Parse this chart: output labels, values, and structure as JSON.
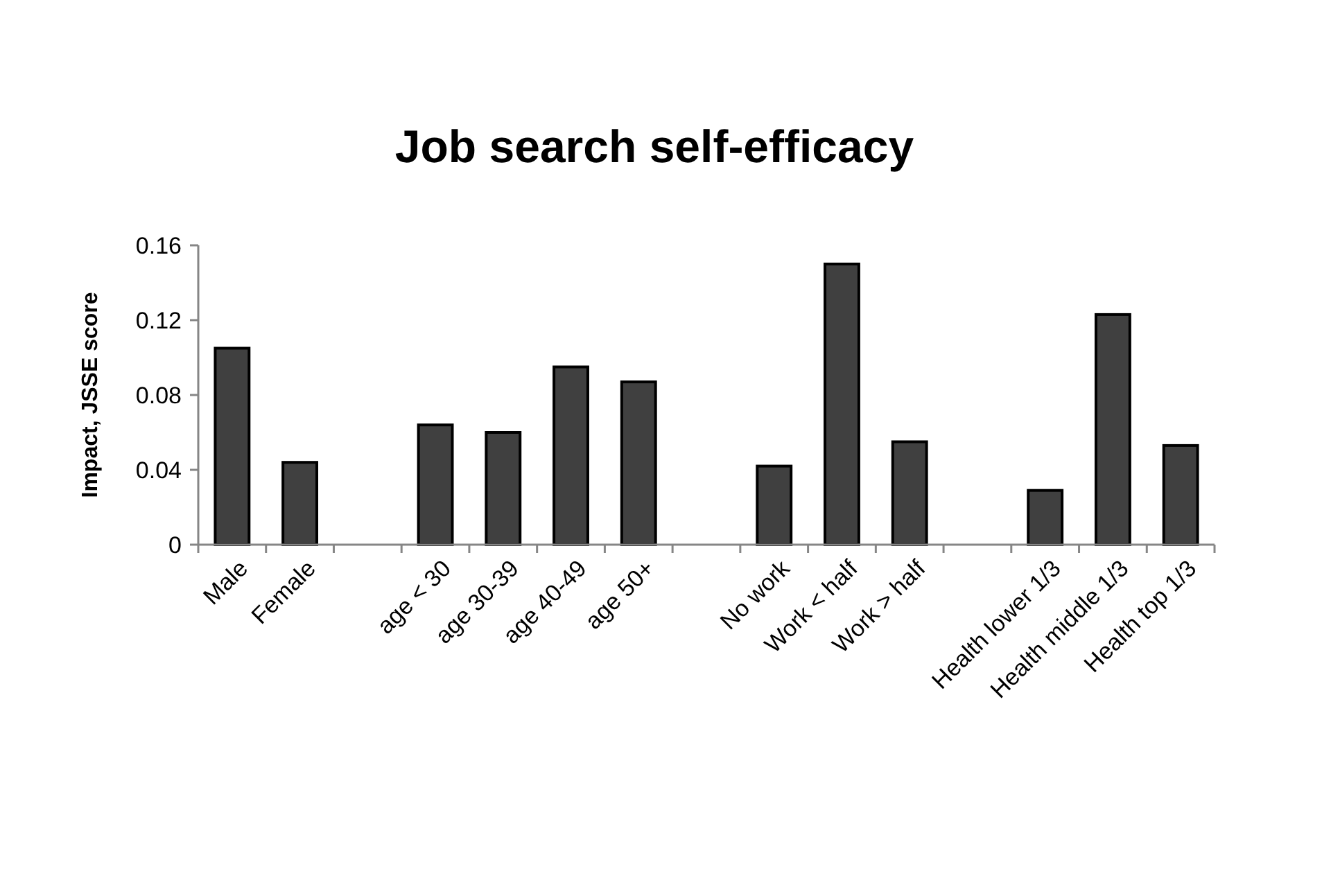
{
  "chart_data": {
    "type": "bar",
    "title": "Job search self-efficacy",
    "ylabel": "Impact, JSSE score",
    "categories": [
      "Male",
      "Female",
      null,
      "age < 30",
      "age 30-39",
      "age 40-49",
      "age 50+",
      null,
      "No work",
      "Work < half",
      "Work > half",
      null,
      "Health lower 1/3",
      "Health middle 1/3",
      "Health top 1/3"
    ],
    "values": [
      0.105,
      0.044,
      null,
      0.064,
      0.06,
      0.095,
      0.087,
      null,
      0.042,
      0.15,
      0.055,
      null,
      0.029,
      0.123,
      0.053
    ],
    "color": "#404040",
    "ylim": [
      0,
      0.16
    ],
    "yticks": [
      0,
      0.04,
      0.08,
      0.12,
      0.16
    ]
  }
}
